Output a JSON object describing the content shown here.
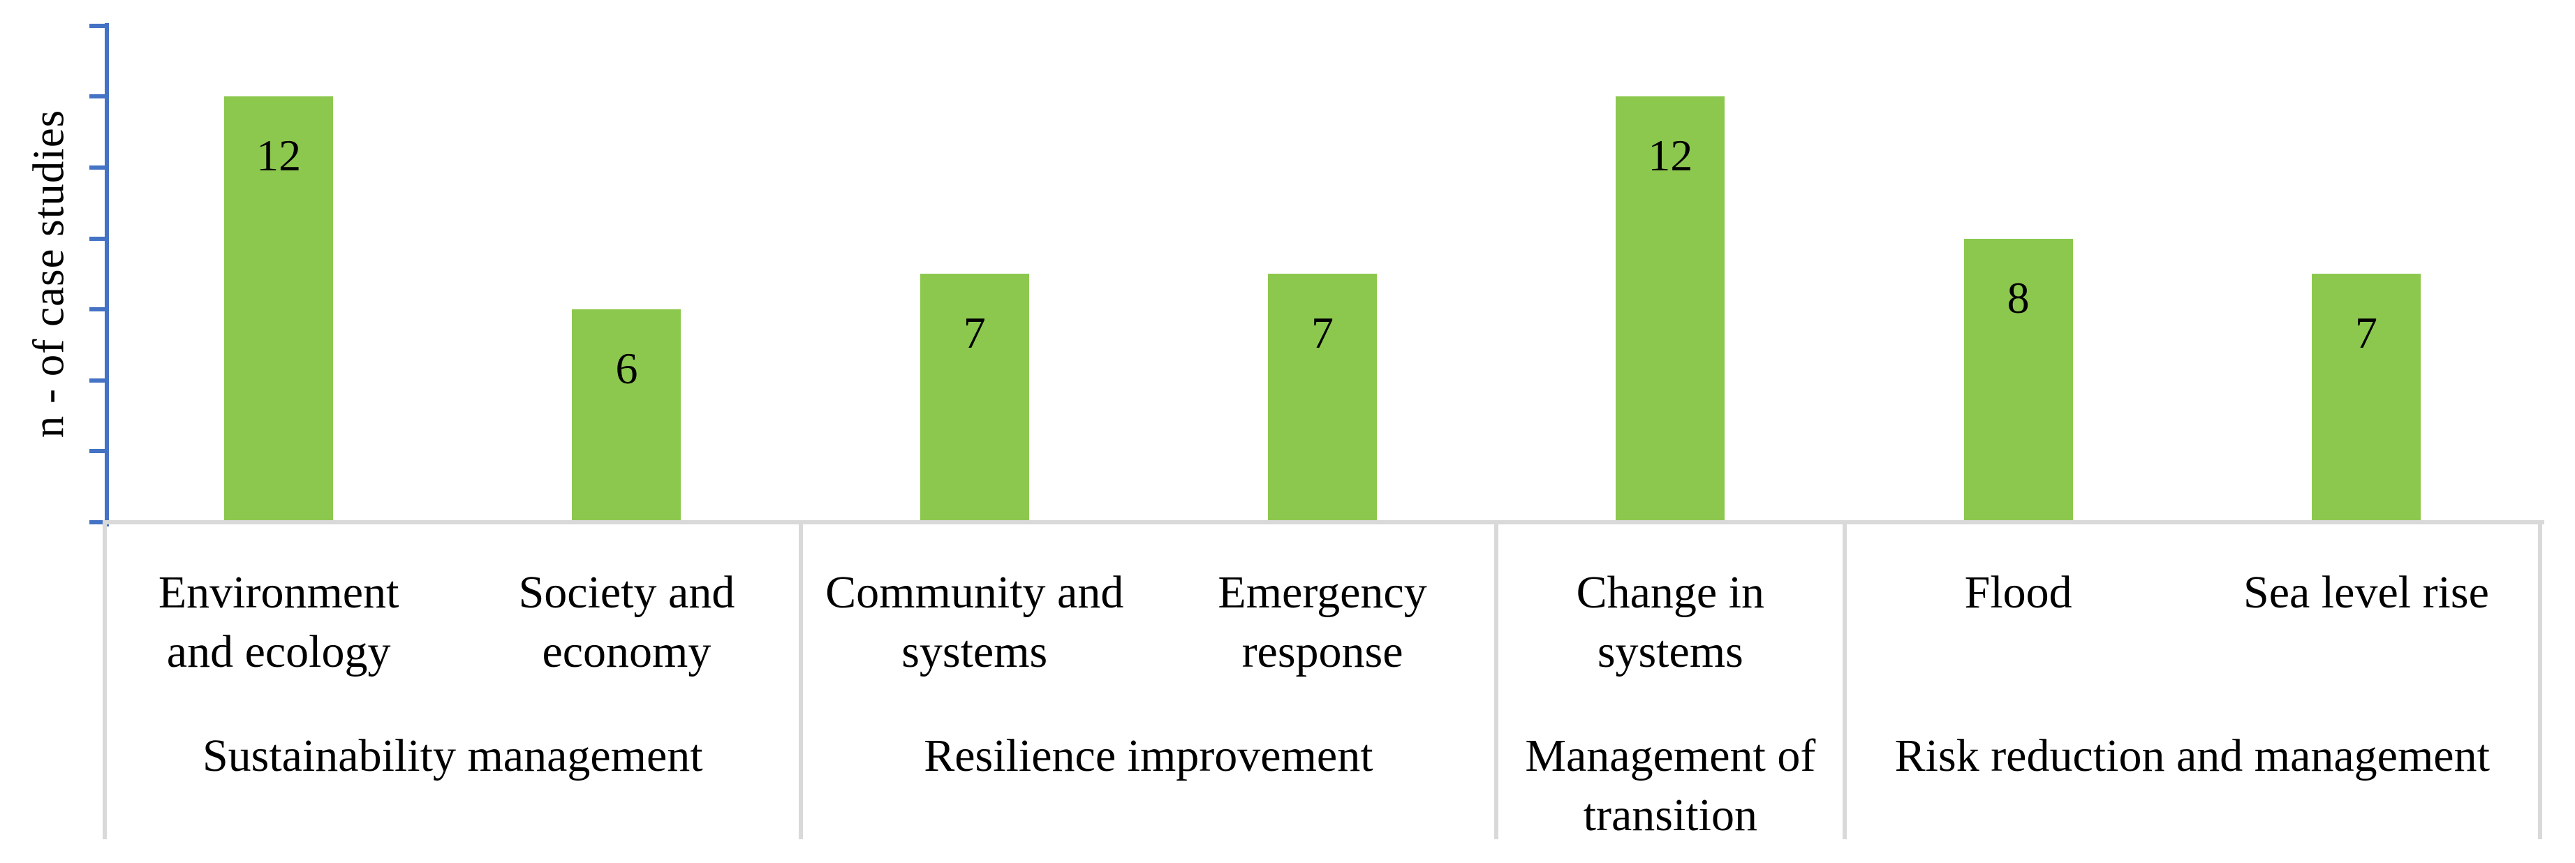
{
  "chart_data": {
    "type": "bar",
    "title": "",
    "xlabel": "",
    "ylabel": "n - of case studies",
    "ylim": [
      0,
      14
    ],
    "ytick_step": 2,
    "ytick_labels_visible": false,
    "grid": false,
    "legend": "none",
    "bar_color": "#8CC84E",
    "axis_color": "#4472C4",
    "table_line_color": "#D9D9D9",
    "categories": [
      "Environment and ecology",
      "Society and economy",
      "Community and systems",
      "Emergency response",
      "Change in systems",
      "Flood",
      "Sea level rise"
    ],
    "category_display_lines": [
      [
        "Environment",
        "and ecology"
      ],
      [
        "Society and",
        "economy"
      ],
      [
        "Community and",
        "systems"
      ],
      [
        "Emergency",
        "response"
      ],
      [
        "Change in",
        "systems"
      ],
      [
        "Flood"
      ],
      [
        "Sea level rise"
      ]
    ],
    "values": [
      12,
      6,
      7,
      7,
      12,
      8,
      7
    ],
    "groups": [
      {
        "label": "Sustainability management",
        "lines": [
          "Sustainability management"
        ],
        "span": 2
      },
      {
        "label": "Resilience improvement",
        "lines": [
          "Resilience improvement"
        ],
        "span": 2
      },
      {
        "label": "Management of transition",
        "lines": [
          "Management of",
          "transition"
        ],
        "span": 1
      },
      {
        "label": "Risk reduction and management",
        "lines": [
          "Risk reduction and management"
        ],
        "span": 2
      }
    ]
  }
}
